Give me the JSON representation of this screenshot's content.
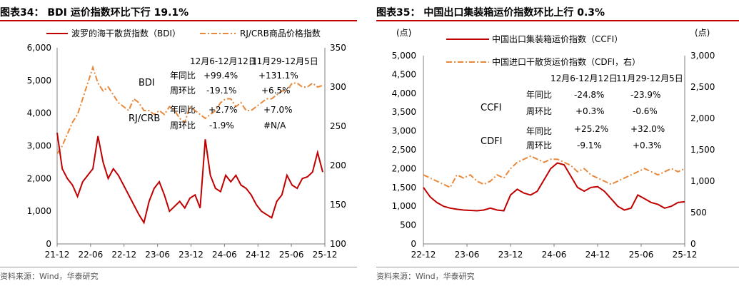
{
  "left": {
    "title": "图表34：  BDI 运价指数环比下行 19.1%",
    "source": "资料来源：Wind，华泰研究",
    "legend": {
      "bdi": "波罗的海干散货指数（BDI）",
      "rj": "RJ/CRB商品价格指数"
    },
    "yleft_ticks": [
      "6,000",
      "5,000",
      "4,000",
      "3,000",
      "2,000",
      "1,000",
      "0"
    ],
    "yright_ticks": [
      "350",
      "300",
      "250",
      "200",
      "150",
      "100"
    ],
    "x_ticks": [
      "21-12",
      "22-06",
      "22-12",
      "23-06",
      "23-12",
      "24-06",
      "24-12",
      "25-06",
      "25-12"
    ],
    "table": {
      "col1": "12月6-12月12日",
      "col2": "11月29-12月5日",
      "row_bdi": "BDI",
      "row_rj": "RJ/CRB",
      "yoy": "年同比",
      "wow": "周环比",
      "bdi_yoy1": "+99.4%",
      "bdi_yoy2": "+131.1%",
      "bdi_wow1": "-19.1%",
      "bdi_wow2": "+6.5%",
      "rj_yoy1": "+2.7%",
      "rj_yoy2": "+7.0%",
      "rj_wow1": "-1.9%",
      "rj_wow2": "#N/A"
    }
  },
  "right": {
    "title": "图表35：  中国出口集装箱运价指数环比上行 0.3%",
    "source": "资料来源：Wind，华泰研究",
    "unit_left": "(点)",
    "unit_right": "(点)",
    "legend": {
      "ccfi": "中国出口集装箱运价指数（CCFI）",
      "cdfi": "中国进口干散货运价指数（CDFI，右）"
    },
    "yleft_ticks": [
      "5,000",
      "4,500",
      "4,000",
      "3,500",
      "3,000",
      "2,500",
      "2,000",
      "1,500",
      "1,000",
      "500",
      "0"
    ],
    "yright_ticks": [
      "3,000",
      "2,500",
      "2,000",
      "1,500",
      "1,000",
      "500",
      "0"
    ],
    "x_ticks": [
      "22-12",
      "23-06",
      "23-12",
      "24-06",
      "24-12",
      "25-06",
      "25-12"
    ],
    "table": {
      "col1": "12月6-12月12日",
      "col2": "11月29-12月5日",
      "row_ccfi": "CCFI",
      "row_cdfi": "CDFI",
      "yoy": "年同比",
      "wow": "周环比",
      "ccfi_yoy1": "-24.8%",
      "ccfi_yoy2": "-23.9%",
      "ccfi_wow1": "+0.3%",
      "ccfi_wow2": "-0.6%",
      "cdfi_yoy1": "+25.2%",
      "cdfi_yoy2": "+32.0%",
      "cdfi_wow1": "-9.1%",
      "cdfi_wow2": "+0.3%"
    }
  },
  "colors": {
    "red": "#c00000",
    "orange": "#e8883a",
    "axis": "#7f7f7f"
  },
  "chart_data": [
    {
      "type": "line",
      "x_range": [
        "2021-12",
        "2025-12"
      ],
      "ylim": [
        0,
        6000
      ],
      "y2lim": [
        100,
        350
      ],
      "series": [
        {
          "name": "波罗的海干散货指数（BDI）",
          "axis": "left",
          "style": "solid",
          "values": [
            3400,
            2300,
            2000,
            1800,
            1450,
            1900,
            2100,
            2300,
            3300,
            2500,
            2000,
            2300,
            2100,
            1800,
            1500,
            1200,
            900,
            650,
            1300,
            1700,
            1900,
            1500,
            1000,
            1150,
            1300,
            1100,
            1400,
            1500,
            1100,
            3200,
            2100,
            1700,
            1600,
            2100,
            1900,
            2100,
            1800,
            1700,
            1500,
            1200,
            1000,
            900,
            800,
            1300,
            1500,
            2100,
            1800,
            1700,
            2000,
            2050,
            2200,
            2800,
            2200
          ]
        },
        {
          "name": "RJ/CRB商品价格指数",
          "axis": "right",
          "style": "dash-dot",
          "values": [
            215,
            225,
            240,
            255,
            265,
            285,
            305,
            325,
            305,
            295,
            300,
            290,
            280,
            275,
            270,
            285,
            280,
            270,
            270,
            265,
            270,
            265,
            275,
            270,
            260,
            255,
            275,
            270,
            265,
            260,
            265,
            270,
            280,
            285,
            285,
            275,
            280,
            270,
            270,
            275,
            280,
            285,
            285,
            290,
            295,
            295,
            305,
            305,
            300,
            300,
            305,
            300,
            302
          ]
        }
      ]
    },
    {
      "type": "line",
      "x_range": [
        "2022-12",
        "2025-12"
      ],
      "ylim": [
        0,
        5000
      ],
      "y2lim": [
        0,
        3000
      ],
      "series": [
        {
          "name": "中国出口集装箱运价指数（CCFI）",
          "axis": "left",
          "style": "solid",
          "values": [
            1500,
            1250,
            1100,
            1000,
            950,
            920,
            900,
            890,
            880,
            900,
            950,
            900,
            880,
            1300,
            1450,
            1350,
            1300,
            1400,
            1700,
            2000,
            2150,
            2100,
            1800,
            1500,
            1400,
            1500,
            1520,
            1400,
            1200,
            1000,
            900,
            950,
            1300,
            1200,
            1100,
            1050,
            950,
            1000,
            1100,
            1120
          ]
        },
        {
          "name": "中国进口干散货运价指数（CDFI，右）",
          "axis": "right",
          "style": "dash-dot",
          "values": [
            1100,
            1050,
            1000,
            950,
            900,
            1100,
            1050,
            1100,
            1000,
            950,
            1000,
            1100,
            1050,
            1200,
            1300,
            1350,
            1400,
            1350,
            1300,
            1350,
            1350,
            1300,
            1250,
            1150,
            1200,
            1100,
            1050,
            1000,
            950,
            1000,
            1050,
            1100,
            1150,
            1200,
            1150,
            1100,
            1150,
            1200,
            1150,
            1200
          ]
        }
      ]
    }
  ]
}
